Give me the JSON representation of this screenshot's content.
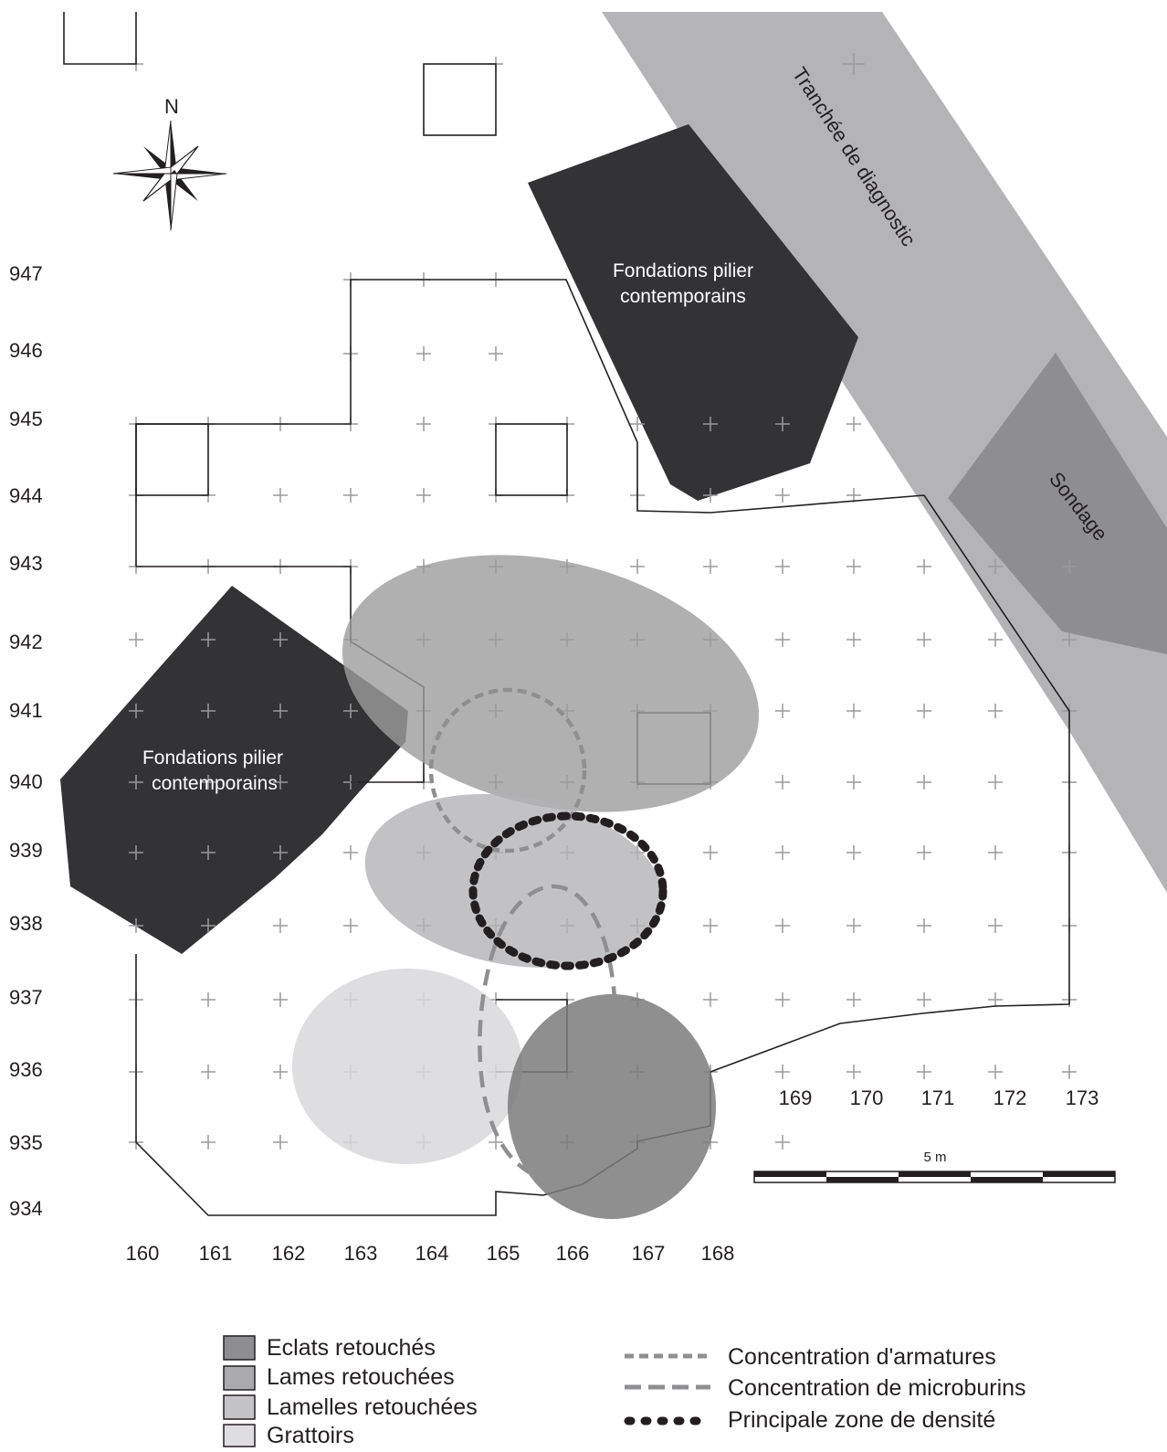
{
  "north_label": "N",
  "trench_label": "Tranchée de diagnostic",
  "sondage_label": "Sondage",
  "foundations_top": {
    "line1": "Fondations pilier",
    "line2": "contemporains"
  },
  "foundations_left": {
    "line1": "Fondations pilier",
    "line2": "contemporains"
  },
  "y_labels": [
    "947",
    "946",
    "945",
    "944",
    "943",
    "942",
    "941",
    "940",
    "939",
    "938",
    "937",
    "936",
    "935",
    "934"
  ],
  "x_labels": [
    "160",
    "161",
    "162",
    "163",
    "164",
    "165",
    "166",
    "167",
    "168"
  ],
  "x_labels_right": [
    "169",
    "170",
    "171",
    "172",
    "173"
  ],
  "scale_bar_label": "5 m",
  "legend_fill": [
    {
      "label": "Eclats retouchés",
      "color": "#8e8e90"
    },
    {
      "label": "Lames retouchées",
      "color": "#aaaaac"
    },
    {
      "label": "Lamelles retouchées",
      "color": "#c4c4c6"
    },
    {
      "label": "Grattoirs",
      "color": "#dedee0"
    }
  ],
  "legend_lines": [
    {
      "label": "Concentration d'armatures",
      "style": "short-dash",
      "color": "#8f8f91"
    },
    {
      "label": "Concentration de microburins",
      "style": "long-dash",
      "color": "#8f8f91"
    },
    {
      "label": "Principale zone de densité",
      "style": "dots",
      "color": "#231f20"
    }
  ],
  "colors": {
    "trench": "#b4b4b7",
    "sondage": "#8e8e90",
    "foundation": "#333336",
    "outline": "#231f20",
    "grid_cross": "#9a9a9c"
  }
}
